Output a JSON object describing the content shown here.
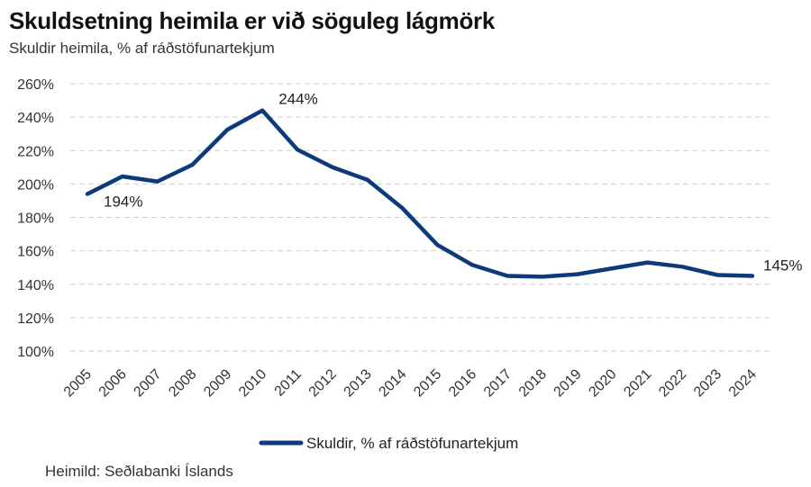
{
  "title": "Skuldsetning heimila er við söguleg lágmörk",
  "subtitle": "Skuldir heimila, % af ráðstöfunartekjum",
  "source": "Heimild: Seðlabanki Íslands",
  "chart_data": {
    "type": "line",
    "title": "Skuldsetning heimila er við söguleg lágmörk",
    "subtitle": "Skuldir heimila, % af ráðstöfunartekjum",
    "xlabel": "",
    "ylabel": "",
    "x": [
      "2005",
      "2006",
      "2007",
      "2008",
      "2009",
      "2010",
      "2011",
      "2012",
      "2013",
      "2014",
      "2015",
      "2016",
      "2017",
      "2018",
      "2019",
      "2020",
      "2021",
      "2022",
      "2023",
      "2024"
    ],
    "ylim": [
      100,
      260
    ],
    "yticks": [
      100,
      120,
      140,
      160,
      180,
      200,
      220,
      240,
      260
    ],
    "ytick_labels": [
      "100%",
      "120%",
      "140%",
      "160%",
      "180%",
      "200%",
      "220%",
      "240%",
      "260%"
    ],
    "grid": true,
    "legend_position": "bottom",
    "series": [
      {
        "name": "Skuldir, % af ráðstöfunartekjum",
        "color": "#0d3a7a",
        "values": [
          194,
          204.5,
          201.5,
          211.5,
          232.5,
          244,
          220.5,
          210,
          202.5,
          185.5,
          163.5,
          151.5,
          145,
          144.5,
          146,
          149.5,
          153,
          150.5,
          145.5,
          145
        ]
      }
    ],
    "annotations": [
      {
        "index": 0,
        "text": "194%"
      },
      {
        "index": 5,
        "text": "244%"
      },
      {
        "index": 19,
        "text": "145%"
      }
    ]
  }
}
